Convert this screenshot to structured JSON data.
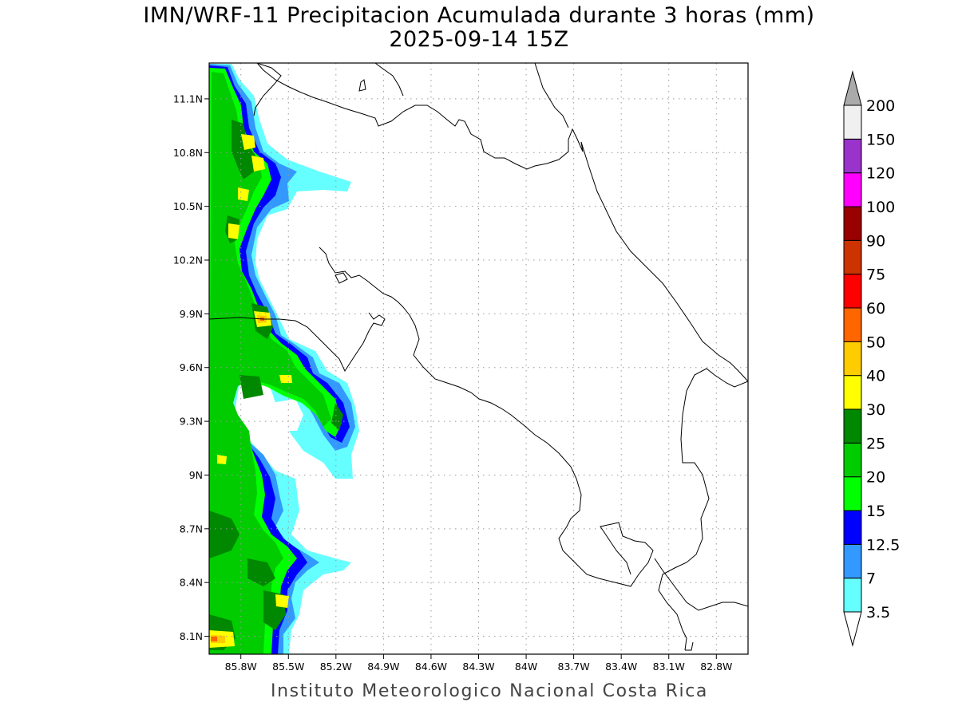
{
  "title": {
    "line1": "IMN/WRF-11 Precipitacion Acumulada durante 3 horas (mm)",
    "line2": "2025-09-14 15Z"
  },
  "footer": "Instituto Meteorologico Nacional Costa Rica",
  "map": {
    "lon_range": [
      -86.0,
      -82.6
    ],
    "lat_range": [
      8.0,
      11.3
    ],
    "lat_ticks": [
      {
        "value": 11.1,
        "label": "11.1N"
      },
      {
        "value": 10.8,
        "label": "10.8N"
      },
      {
        "value": 10.5,
        "label": "10.5N"
      },
      {
        "value": 10.2,
        "label": "10.2N"
      },
      {
        "value": 9.9,
        "label": "9.9N"
      },
      {
        "value": 9.6,
        "label": "9.6N"
      },
      {
        "value": 9.3,
        "label": "9.3N"
      },
      {
        "value": 9.0,
        "label": "9N"
      },
      {
        "value": 8.7,
        "label": "8.7N"
      },
      {
        "value": 8.4,
        "label": "8.4N"
      },
      {
        "value": 8.1,
        "label": "8.1N"
      }
    ],
    "lon_ticks": [
      {
        "value": -85.8,
        "label": "85.8W"
      },
      {
        "value": -85.5,
        "label": "85.5W"
      },
      {
        "value": -85.2,
        "label": "85.2W"
      },
      {
        "value": -84.9,
        "label": "84.9W"
      },
      {
        "value": -84.6,
        "label": "84.6W"
      },
      {
        "value": -84.3,
        "label": "84.3W"
      },
      {
        "value": -84.0,
        "label": "84W"
      },
      {
        "value": -83.7,
        "label": "83.7W"
      },
      {
        "value": -83.4,
        "label": "83.4W"
      },
      {
        "value": -83.1,
        "label": "83.1W"
      },
      {
        "value": -82.8,
        "label": "82.8W"
      }
    ],
    "grid": true
  },
  "colorbar": {
    "levels": [
      "3.5",
      "7",
      "12.5",
      "15",
      "20",
      "25",
      "30",
      "40",
      "50",
      "60",
      "75",
      "90",
      "100",
      "120",
      "150",
      "200"
    ],
    "colors": [
      "#66ffff",
      "#3399ff",
      "#0000ff",
      "#00ff00",
      "#00cc00",
      "#008800",
      "#ffff00",
      "#ffcc00",
      "#ff6600",
      "#ff0000",
      "#cc3300",
      "#990000",
      "#ff00ff",
      "#9933cc",
      "#f0f0f0"
    ],
    "over_color": "#aaaaaa",
    "under_color": "#ffffff"
  }
}
